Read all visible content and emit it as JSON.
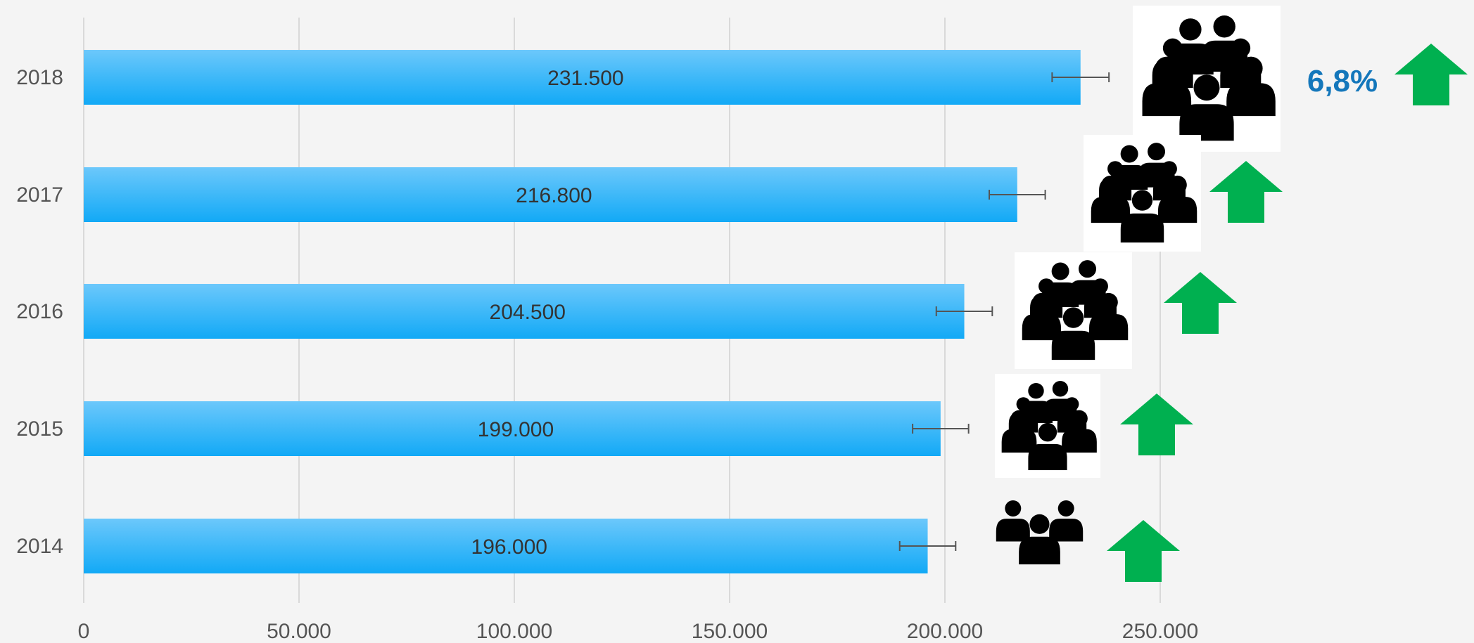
{
  "chart_data": {
    "type": "bar",
    "orientation": "horizontal",
    "categories": [
      "2018",
      "2017",
      "2016",
      "2015",
      "2014"
    ],
    "values": [
      231500,
      216800,
      204500,
      199000,
      196000
    ],
    "value_labels": [
      "231.500",
      "216.800",
      "204.500",
      "199.000",
      "196.000"
    ],
    "error_low": [
      224900,
      210300,
      198000,
      192500,
      189500
    ],
    "error_high": [
      238100,
      223300,
      211000,
      205500,
      202500
    ],
    "xlim": [
      0,
      250000
    ],
    "x_ticks": [
      0,
      50000,
      100000,
      150000,
      200000,
      250000
    ],
    "x_tick_labels": [
      "0",
      "50.000",
      "100.000",
      "150.000",
      "200.000",
      "250.000"
    ],
    "grid": "vertical",
    "title": "",
    "xlabel": "",
    "ylabel": "",
    "bar_color_top": "#6cc8fb",
    "bar_color_bottom": "#12a9f6",
    "gridline_color": "#d9d9d9",
    "annotation": {
      "text": "6,8%",
      "color": "#1477bb",
      "arrow_color": "#00b050"
    },
    "row_icons": [
      "people-group-icon",
      "people-group-icon",
      "people-group-icon",
      "people-group-icon",
      "people-group-icon"
    ],
    "row_arrows": [
      "up-arrow-icon",
      "up-arrow-icon",
      "up-arrow-icon",
      "up-arrow-icon",
      "up-arrow-icon"
    ]
  }
}
